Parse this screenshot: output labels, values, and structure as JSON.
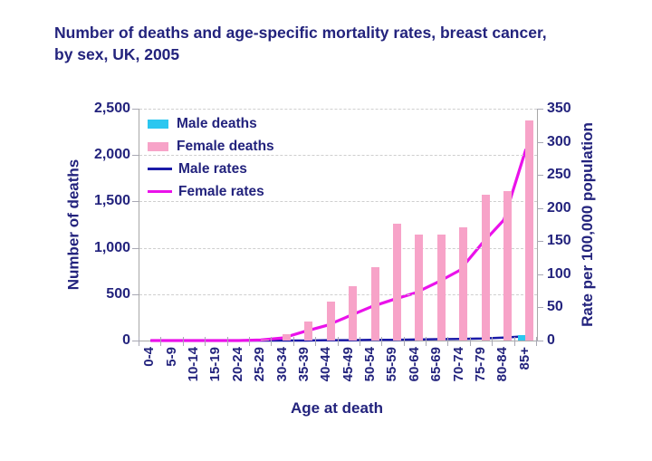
{
  "title": {
    "text": "Number of deaths and age-specific mortality rates, breast cancer, by sex, UK, 2005",
    "color": "#23237D"
  },
  "chart_data": {
    "type": "combo-bar-line",
    "categories": [
      "0-4",
      "5-9",
      "10-14",
      "15-19",
      "20-24",
      "25-29",
      "30-34",
      "35-39",
      "40-44",
      "45-49",
      "50-54",
      "55-59",
      "60-64",
      "65-69",
      "70-74",
      "75-79",
      "80-84",
      "85+"
    ],
    "series": [
      {
        "name": "Male deaths",
        "type": "bar",
        "axis": "left",
        "color": "#2BC7F0",
        "values": [
          0,
          0,
          0,
          0,
          0,
          0,
          0,
          0,
          0,
          0,
          0,
          0,
          0,
          0,
          0,
          0,
          0,
          55
        ]
      },
      {
        "name": "Female deaths",
        "type": "bar",
        "axis": "left",
        "color": "#F7A3C8",
        "values": [
          0,
          0,
          0,
          0,
          0,
          10,
          70,
          210,
          420,
          590,
          790,
          1260,
          1140,
          1140,
          1220,
          1570,
          1610,
          2370
        ]
      },
      {
        "name": "Male rates",
        "type": "line",
        "axis": "right",
        "color": "#1B1BA8",
        "values": [
          0,
          0,
          0,
          0,
          0,
          0,
          0,
          0,
          0.5,
          0.5,
          1,
          1,
          1.5,
          2,
          2.5,
          3,
          4.5,
          6.5
        ]
      },
      {
        "name": "Female rates",
        "type": "line",
        "axis": "right",
        "color": "#EA12EA",
        "values": [
          0,
          0,
          0,
          0,
          0,
          1,
          4,
          14,
          23,
          37,
          51,
          62,
          72,
          88,
          106,
          146,
          182,
          289
        ]
      }
    ],
    "left_axis": {
      "title": "Number of deaths",
      "min": 0,
      "max": 2500,
      "tick_values": [
        0,
        500,
        1000,
        1500,
        2000,
        2500
      ],
      "tick_labels": [
        "0",
        "500",
        "1,000",
        "1,500",
        "2,000",
        "2,500"
      ]
    },
    "right_axis": {
      "title": "Rate per 100,000 population",
      "min": 0,
      "max": 350,
      "tick_values": [
        0,
        50,
        100,
        150,
        200,
        250,
        300,
        350
      ],
      "tick_labels": [
        "0",
        "50",
        "100",
        "150",
        "200",
        "250",
        "300",
        "350"
      ]
    },
    "x_axis": {
      "title": "Age at death"
    },
    "legend_position": "top-left-inside",
    "grid": "horizontal-dashed"
  }
}
